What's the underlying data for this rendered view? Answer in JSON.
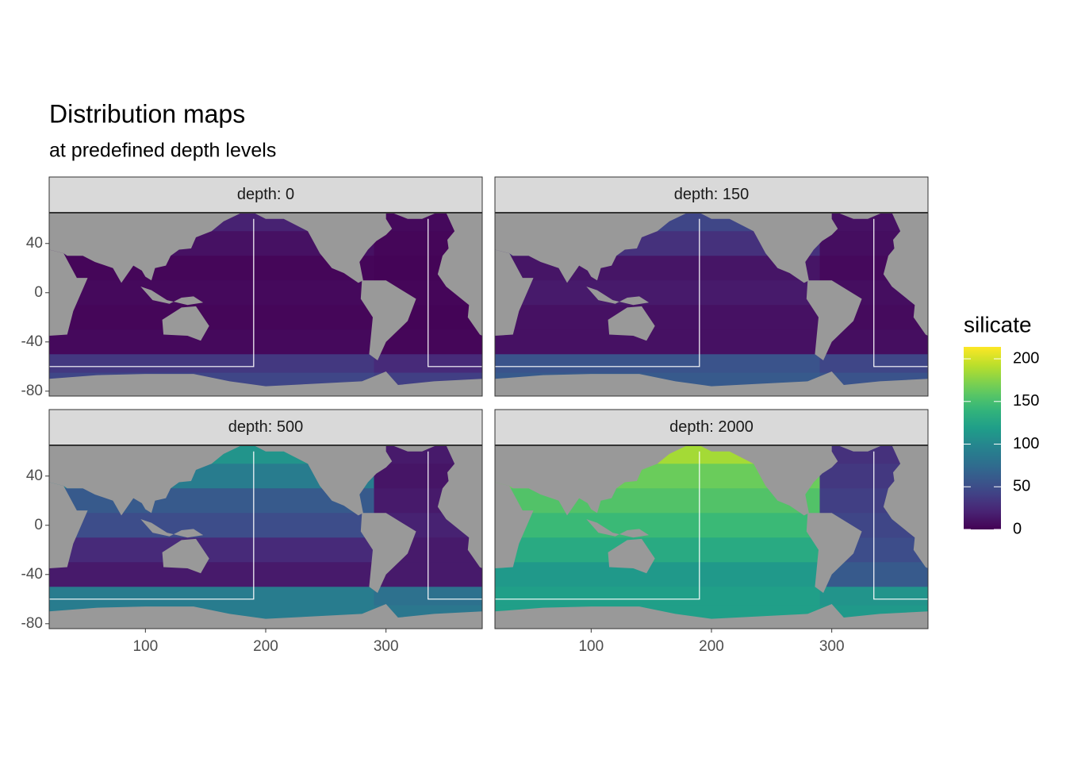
{
  "chart_data": {
    "type": "raster",
    "title": "Distribution maps",
    "subtitle": "at predefined depth levels",
    "legend_title": "silicate",
    "colorbar_lim": [
      0,
      214
    ],
    "colorbar_ticks": [
      0,
      50,
      100,
      150,
      200
    ],
    "colormap": "viridis",
    "xlim": [
      20,
      380
    ],
    "ylim": [
      -84,
      65
    ],
    "xticks": [
      100,
      200,
      300
    ],
    "yticks": [
      40,
      0,
      -40,
      -80
    ],
    "lon_edges": [
      20,
      290,
      380
    ],
    "lat_edges": [
      65,
      50,
      30,
      10,
      -10,
      -30,
      -50,
      -65,
      -84
    ],
    "facets": [
      {
        "label": "depth: 0",
        "values": [
          [
            20,
            5
          ],
          [
            10,
            3
          ],
          [
            3,
            2
          ],
          [
            5,
            3
          ],
          [
            3,
            2
          ],
          [
            5,
            3
          ],
          [
            35,
            25
          ],
          [
            45,
            40
          ]
        ]
      },
      {
        "label": "depth: 150",
        "values": [
          [
            45,
            10
          ],
          [
            30,
            8
          ],
          [
            12,
            5
          ],
          [
            15,
            8
          ],
          [
            10,
            6
          ],
          [
            10,
            8
          ],
          [
            55,
            45
          ],
          [
            60,
            55
          ]
        ]
      },
      {
        "label": "depth: 500",
        "values": [
          [
            110,
            15
          ],
          [
            90,
            12
          ],
          [
            60,
            15
          ],
          [
            50,
            20
          ],
          [
            25,
            15
          ],
          [
            15,
            15
          ],
          [
            90,
            80
          ],
          [
            90,
            85
          ]
        ]
      },
      {
        "label": "depth: 2000",
        "values": [
          [
            185,
            30
          ],
          [
            165,
            35
          ],
          [
            155,
            40
          ],
          [
            145,
            45
          ],
          [
            130,
            50
          ],
          [
            115,
            60
          ],
          [
            120,
            110
          ],
          [
            120,
            115
          ]
        ]
      }
    ]
  }
}
